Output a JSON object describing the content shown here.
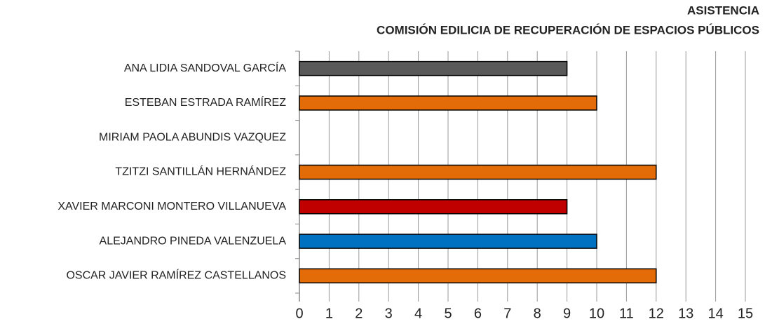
{
  "chart_data": {
    "type": "bar",
    "orientation": "horizontal",
    "title": "ASISTENCIA",
    "subtitle": "COMISIÓN EDILICIA DE RECUPERACIÓN DE ESPACIOS PÚBLICOS",
    "categories": [
      "ANA LIDIA SANDOVAL GARCÍA",
      "ESTEBAN ESTRADA RAMÍREZ",
      "MIRIAM PAOLA ABUNDIS VAZQUEZ",
      "TZITZI SANTILLÁN HERNÁNDEZ",
      "XAVIER MARCONI MONTERO VILLANUEVA",
      "ALEJANDRO PINEDA VALENZUELA",
      "OSCAR JAVIER RAMÍREZ CASTELLANOS"
    ],
    "values": [
      9,
      10,
      0,
      12,
      9,
      10,
      12
    ],
    "colors": [
      "#595959",
      "#e36c09",
      "#e36c09",
      "#e36c09",
      "#c00000",
      "#0070c0",
      "#e36c09"
    ],
    "xlim": [
      0,
      15
    ],
    "xticks": [
      0,
      1,
      2,
      3,
      4,
      5,
      6,
      7,
      8,
      9,
      10,
      11,
      12,
      13,
      14,
      15
    ],
    "grid": true
  }
}
